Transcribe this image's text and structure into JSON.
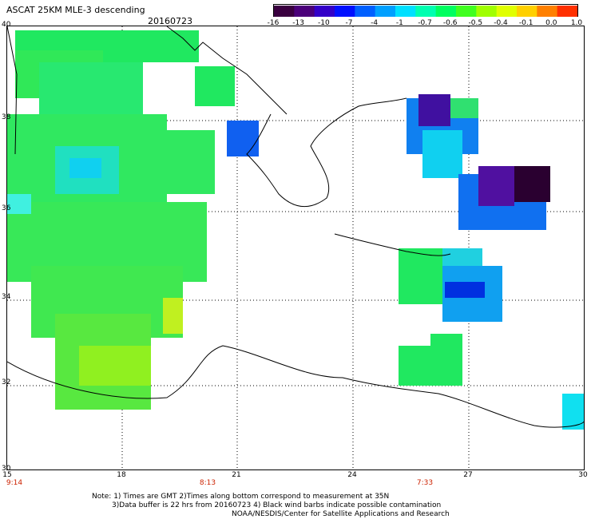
{
  "header": {
    "title": "ASCAT 25KM MLE-3 descending",
    "date": "20160723"
  },
  "colorbar": {
    "colors": [
      "#3a0040",
      "#4b007a",
      "#3300c8",
      "#0010ff",
      "#0060ff",
      "#00a0ff",
      "#00e0ff",
      "#00ffb0",
      "#00ff60",
      "#40ff20",
      "#a0ff00",
      "#e0ff00",
      "#ffd000",
      "#ff8000",
      "#ff3000"
    ],
    "ticks": [
      "-16",
      "-13",
      "-10",
      "-7",
      "-4",
      "-1",
      "-0.7",
      "-0.6",
      "-0.5",
      "-0.4",
      "-0.1",
      "0.0",
      "1.0"
    ]
  },
  "map": {
    "lat_labels": [
      "40",
      "38",
      "36",
      "34",
      "32",
      "30"
    ],
    "lon_labels": [
      "15",
      "18",
      "21",
      "24",
      "27",
      "30"
    ],
    "time_labels": [
      "9:14",
      "8:13",
      "7:33"
    ]
  },
  "notes": {
    "line1": "Note: 1) Times are GMT 2)Times along bottom correspond to measurement at 35N",
    "line2": "3)Data buffer is 22 hrs from 20160723 4) Black wind barbs indicate possible contamination",
    "line3": "NOAA/NESDIS/Center for Satellite Applications and Research"
  }
}
